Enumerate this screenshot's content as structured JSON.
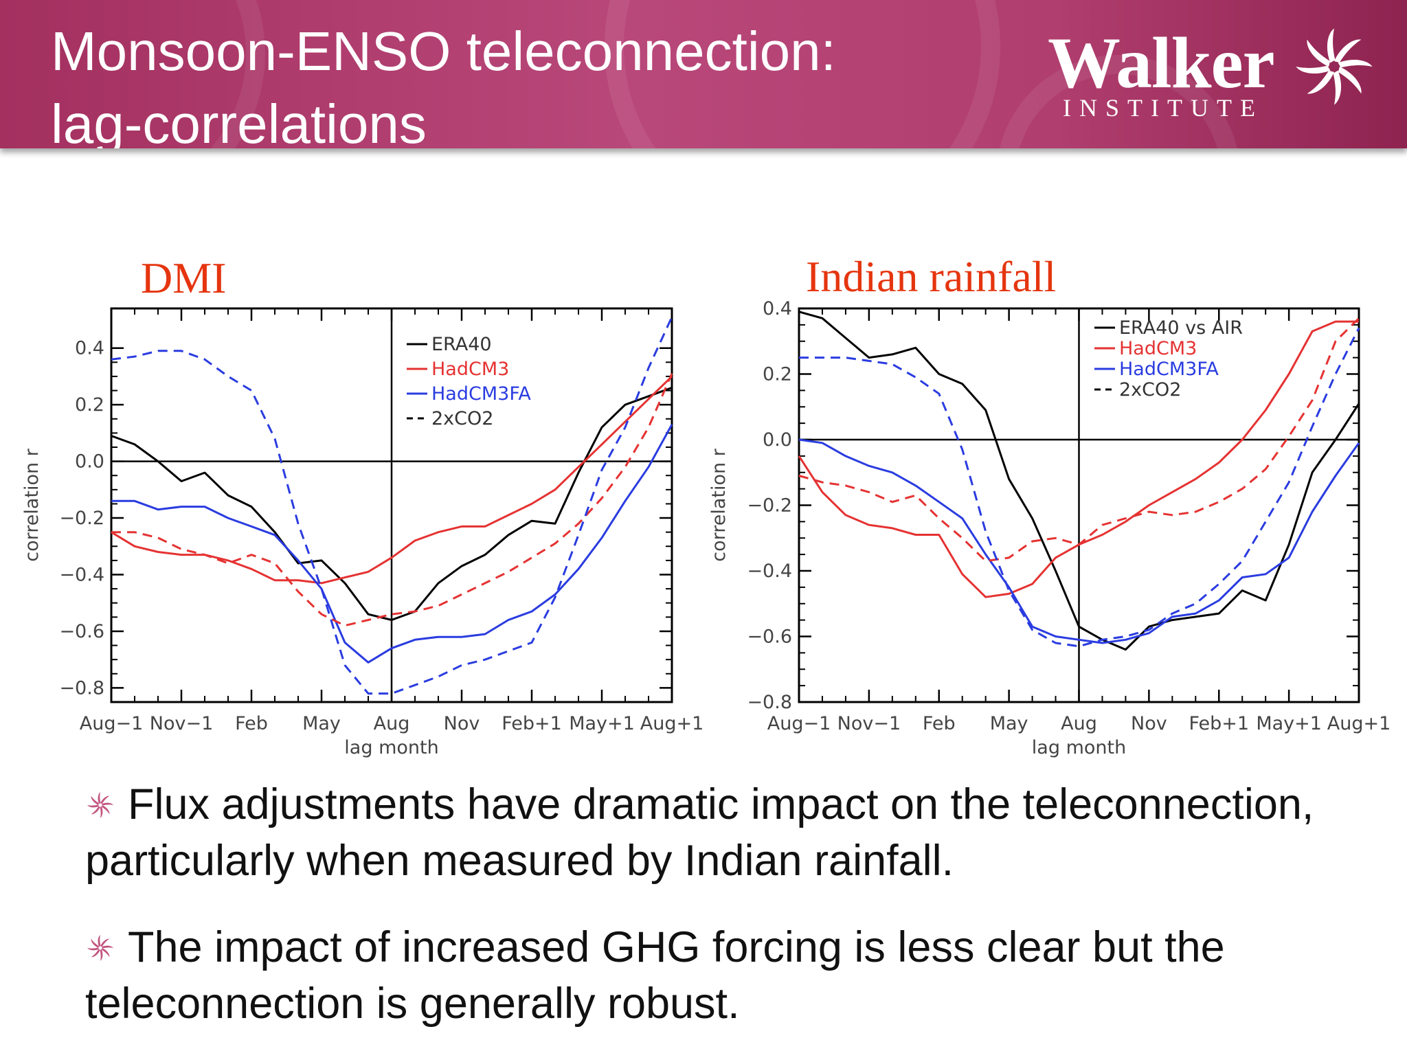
{
  "header": {
    "title_line1": "Monsoon-ENSO teleconnection:",
    "title_line2": "lag-correlations",
    "logo_word": "Walker",
    "logo_sub": "INSTITUTE",
    "logo_icon": "walker-swirl-icon",
    "color": "#a3305f"
  },
  "chart_data": [
    {
      "type": "line",
      "title": "DMI",
      "xlabel": "lag month",
      "ylabel": "correlation r",
      "ylim": [
        -0.85,
        0.54
      ],
      "xlim": [
        0,
        24
      ],
      "x_tick_labels": [
        "Aug−1",
        "Nov−1",
        "Feb",
        "May",
        "Aug",
        "Nov",
        "Feb+1",
        "May+1",
        "Aug+1"
      ],
      "y_ticks": [
        0.4,
        0.2,
        0.0,
        -0.2,
        -0.4,
        -0.6,
        -0.8
      ],
      "y_tick_labels": [
        "0.4",
        "0.2",
        "0.0",
        "−0.2",
        "−0.4",
        "−0.6",
        "−0.8"
      ],
      "legend": [
        "ERA40",
        "HadCM3",
        "HadCM3FA",
        "2xCO2"
      ],
      "legend_position": "top-right",
      "series": [
        {
          "name": "ERA40",
          "color": "#000000",
          "dash": false,
          "x": [
            0,
            1,
            2,
            3,
            4,
            5,
            6,
            7,
            8,
            9,
            10,
            11,
            12,
            13,
            14,
            15,
            16,
            17,
            18,
            19,
            20,
            21,
            22,
            23,
            24
          ],
          "values": [
            0.09,
            0.06,
            0.0,
            -0.07,
            -0.04,
            -0.12,
            -0.16,
            -0.25,
            -0.36,
            -0.35,
            -0.43,
            -0.54,
            -0.56,
            -0.53,
            -0.43,
            -0.37,
            -0.33,
            -0.26,
            -0.21,
            -0.22,
            -0.04,
            0.12,
            0.2,
            0.23,
            0.26
          ]
        },
        {
          "name": "HadCM3",
          "color": "#e53232",
          "dash": false,
          "x": [
            0,
            1,
            2,
            3,
            4,
            5,
            6,
            7,
            8,
            9,
            10,
            11,
            12,
            13,
            14,
            15,
            16,
            17,
            18,
            19,
            20,
            21,
            22,
            23,
            24
          ],
          "values": [
            -0.25,
            -0.3,
            -0.32,
            -0.33,
            -0.33,
            -0.35,
            -0.38,
            -0.42,
            -0.42,
            -0.43,
            -0.41,
            -0.39,
            -0.34,
            -0.28,
            -0.25,
            -0.23,
            -0.23,
            -0.19,
            -0.15,
            -0.1,
            -0.02,
            0.06,
            0.14,
            0.22,
            0.3
          ]
        },
        {
          "name": "HadCM3FA",
          "color": "#2a3ce0",
          "dash": false,
          "x": [
            0,
            1,
            2,
            3,
            4,
            5,
            6,
            7,
            8,
            9,
            10,
            11,
            12,
            13,
            14,
            15,
            16,
            17,
            18,
            19,
            20,
            21,
            22,
            23,
            24
          ],
          "values": [
            -0.14,
            -0.14,
            -0.17,
            -0.16,
            -0.16,
            -0.2,
            -0.23,
            -0.26,
            -0.35,
            -0.45,
            -0.64,
            -0.71,
            -0.66,
            -0.63,
            -0.62,
            -0.62,
            -0.61,
            -0.56,
            -0.53,
            -0.47,
            -0.38,
            -0.27,
            -0.14,
            -0.02,
            0.13
          ]
        },
        {
          "name": "2xCO2",
          "color": "#e53232",
          "dash": true,
          "x": [
            0,
            1,
            2,
            3,
            4,
            5,
            6,
            7,
            8,
            9,
            10,
            11,
            12,
            13,
            14,
            15,
            16,
            17,
            18,
            19,
            20,
            21,
            22,
            23,
            24
          ],
          "values": [
            -0.25,
            -0.25,
            -0.27,
            -0.31,
            -0.33,
            -0.36,
            -0.33,
            -0.36,
            -0.46,
            -0.54,
            -0.58,
            -0.56,
            -0.54,
            -0.53,
            -0.51,
            -0.47,
            -0.43,
            -0.39,
            -0.34,
            -0.29,
            -0.22,
            -0.13,
            -0.02,
            0.12,
            0.31
          ]
        },
        {
          "name": "2xCO2",
          "color": "#2a3ce0",
          "dash": true,
          "x": [
            0,
            1,
            2,
            3,
            4,
            5,
            6,
            7,
            8,
            9,
            10,
            11,
            12,
            13,
            14,
            15,
            16,
            17,
            18,
            19,
            20,
            21,
            22,
            23,
            24
          ],
          "values": [
            0.36,
            0.37,
            0.39,
            0.39,
            0.36,
            0.3,
            0.25,
            0.08,
            -0.22,
            -0.45,
            -0.72,
            -0.82,
            -0.82,
            -0.79,
            -0.76,
            -0.72,
            -0.7,
            -0.67,
            -0.64,
            -0.48,
            -0.26,
            -0.03,
            0.12,
            0.33,
            0.51
          ]
        }
      ]
    },
    {
      "type": "line",
      "title": "Indian rainfall",
      "xlabel": "lag month",
      "ylabel": "correlation r",
      "ylim": [
        -0.8,
        0.4
      ],
      "xlim": [
        0,
        24
      ],
      "x_tick_labels": [
        "Aug−1",
        "Nov−1",
        "Feb",
        "May",
        "Aug",
        "Nov",
        "Feb+1",
        "May+1",
        "Aug+1"
      ],
      "y_ticks": [
        0.4,
        0.2,
        0.0,
        -0.2,
        -0.4,
        -0.6,
        -0.8
      ],
      "y_tick_labels": [
        "0.4",
        "0.2",
        "0.0",
        "−0.2",
        "−0.4",
        "−0.6",
        "−0.8"
      ],
      "legend": [
        "ERA40 vs AIR",
        "HadCM3",
        "HadCM3FA",
        "2xCO2"
      ],
      "legend_position": "top-right",
      "series": [
        {
          "name": "ERA40 vs AIR",
          "color": "#000000",
          "dash": false,
          "x": [
            0,
            1,
            2,
            3,
            4,
            5,
            6,
            7,
            8,
            9,
            10,
            11,
            12,
            13,
            14,
            15,
            16,
            17,
            18,
            19,
            20,
            21,
            22,
            23,
            24
          ],
          "values": [
            0.39,
            0.37,
            0.31,
            0.25,
            0.26,
            0.28,
            0.2,
            0.17,
            0.09,
            -0.12,
            -0.24,
            -0.4,
            -0.57,
            -0.61,
            -0.64,
            -0.57,
            -0.55,
            -0.54,
            -0.53,
            -0.46,
            -0.49,
            -0.32,
            -0.1,
            0.0,
            0.11
          ]
        },
        {
          "name": "HadCM3",
          "color": "#e53232",
          "dash": false,
          "x": [
            0,
            1,
            2,
            3,
            4,
            5,
            6,
            7,
            8,
            9,
            10,
            11,
            12,
            13,
            14,
            15,
            16,
            17,
            18,
            19,
            20,
            21,
            22,
            23,
            24
          ],
          "values": [
            -0.05,
            -0.16,
            -0.23,
            -0.26,
            -0.27,
            -0.29,
            -0.29,
            -0.41,
            -0.48,
            -0.47,
            -0.44,
            -0.36,
            -0.32,
            -0.29,
            -0.25,
            -0.2,
            -0.16,
            -0.12,
            -0.07,
            0.0,
            0.09,
            0.2,
            0.33,
            0.36,
            0.36
          ]
        },
        {
          "name": "HadCM3FA",
          "color": "#2a3ce0",
          "dash": false,
          "x": [
            0,
            1,
            2,
            3,
            4,
            5,
            6,
            7,
            8,
            9,
            10,
            11,
            12,
            13,
            14,
            15,
            16,
            17,
            18,
            19,
            20,
            21,
            22,
            23,
            24
          ],
          "values": [
            0.0,
            -0.01,
            -0.05,
            -0.08,
            -0.1,
            -0.14,
            -0.19,
            -0.24,
            -0.35,
            -0.45,
            -0.57,
            -0.6,
            -0.61,
            -0.62,
            -0.61,
            -0.59,
            -0.54,
            -0.53,
            -0.49,
            -0.42,
            -0.41,
            -0.36,
            -0.22,
            -0.11,
            -0.01
          ]
        },
        {
          "name": "2xCO2",
          "color": "#e53232",
          "dash": true,
          "x": [
            0,
            1,
            2,
            3,
            4,
            5,
            6,
            7,
            8,
            9,
            10,
            11,
            12,
            13,
            14,
            15,
            16,
            17,
            18,
            19,
            20,
            21,
            22,
            23,
            24
          ],
          "values": [
            -0.11,
            -0.13,
            -0.14,
            -0.16,
            -0.19,
            -0.17,
            -0.24,
            -0.3,
            -0.37,
            -0.36,
            -0.31,
            -0.3,
            -0.32,
            -0.26,
            -0.24,
            -0.22,
            -0.23,
            -0.22,
            -0.19,
            -0.15,
            -0.09,
            0.01,
            0.12,
            0.3,
            0.37
          ]
        },
        {
          "name": "2xCO2",
          "color": "#2a3ce0",
          "dash": true,
          "x": [
            0,
            1,
            2,
            3,
            4,
            5,
            6,
            7,
            8,
            9,
            10,
            11,
            12,
            13,
            14,
            15,
            16,
            17,
            18,
            19,
            20,
            21,
            22,
            23,
            24
          ],
          "values": [
            0.25,
            0.25,
            0.25,
            0.24,
            0.23,
            0.19,
            0.14,
            -0.03,
            -0.28,
            -0.46,
            -0.58,
            -0.62,
            -0.63,
            -0.61,
            -0.6,
            -0.58,
            -0.53,
            -0.5,
            -0.44,
            -0.37,
            -0.25,
            -0.13,
            0.04,
            0.2,
            0.34
          ]
        }
      ]
    }
  ],
  "bullets": [
    {
      "text": "Flux adjustments have dramatic impact on the teleconnection, particularly when measured by Indian rainfall.",
      "icon": "swirl-bullet-icon"
    },
    {
      "text": "The impact of increased GHG forcing is less clear but the teleconnection is generally robust.",
      "icon": "swirl-bullet-icon"
    }
  ],
  "colors": {
    "black": "#000000",
    "red": "#e53232",
    "blue": "#2a3ce0",
    "title_red": "#e5350f"
  }
}
